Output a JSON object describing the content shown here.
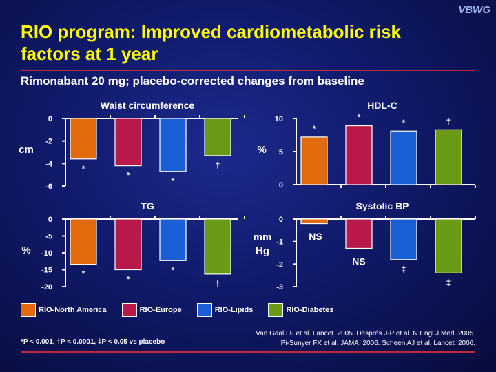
{
  "logo": "VBWG",
  "title": "RIO program: Improved cardiometabolic risk factors at 1 year",
  "subtitle": "Rimonabant 20 mg; placebo-corrected changes from baseline",
  "colors": {
    "title": "#ffff00",
    "rule": "#c0283c",
    "series": [
      "#e06a0c",
      "#b8184a",
      "#1b5fd6",
      "#6a9a16"
    ]
  },
  "legend": [
    "RIO-North America",
    "RIO-Europe",
    "RIO-Lipids",
    "RIO-Diabetes"
  ],
  "footnote": "*P < 0.001, †P < 0.0001, ‡P < 0.05 vs placebo",
  "references": [
    "Van Gaal LF et al. Lancet. 2005. Després J-P et al. N Engl J Med. 2005.",
    "Pi-Sunyer FX et al. JAMA. 2006. Scheen AJ et al. Lancet. 2006."
  ],
  "chart_data": [
    {
      "type": "bar",
      "title": "Waist circumference",
      "ylabel": "cm",
      "ylim": [
        -6,
        0
      ],
      "ticks": [
        0,
        -2,
        -4,
        -6
      ],
      "categories": [
        "RIO-North America",
        "RIO-Europe",
        "RIO-Lipids",
        "RIO-Diabetes"
      ],
      "values": [
        -3.6,
        -4.2,
        -4.7,
        -3.3
      ],
      "annotations": [
        "*",
        "*",
        "*",
        "†"
      ]
    },
    {
      "type": "bar",
      "title": "HDL-C",
      "ylabel": "%",
      "ylim": [
        0,
        10
      ],
      "ticks": [
        10,
        5,
        0
      ],
      "categories": [
        "RIO-North America",
        "RIO-Europe",
        "RIO-Lipids",
        "RIO-Diabetes"
      ],
      "values": [
        7.2,
        8.9,
        8.1,
        8.3
      ],
      "annotations": [
        "*",
        "*",
        "*",
        "†"
      ]
    },
    {
      "type": "bar",
      "title": "TG",
      "ylabel": "%",
      "ylim": [
        -20,
        0
      ],
      "ticks": [
        0,
        -5,
        -10,
        -15,
        -20
      ],
      "categories": [
        "RIO-North America",
        "RIO-Europe",
        "RIO-Lipids",
        "RIO-Diabetes"
      ],
      "values": [
        -13.4,
        -15,
        -12.3,
        -16.3
      ],
      "annotations": [
        "*",
        "*",
        "*",
        "†"
      ]
    },
    {
      "type": "bar",
      "title": "Systolic BP",
      "ylabel": "mm Hg",
      "ylim": [
        -3,
        0
      ],
      "ticks": [
        0,
        -1,
        -2,
        -3
      ],
      "categories": [
        "RIO-North America",
        "RIO-Europe",
        "RIO-Lipids",
        "RIO-Diabetes"
      ],
      "values": [
        -0.2,
        -1.3,
        -1.8,
        -2.4
      ],
      "annotations": [
        "NS",
        "NS",
        "‡",
        "‡"
      ]
    }
  ]
}
